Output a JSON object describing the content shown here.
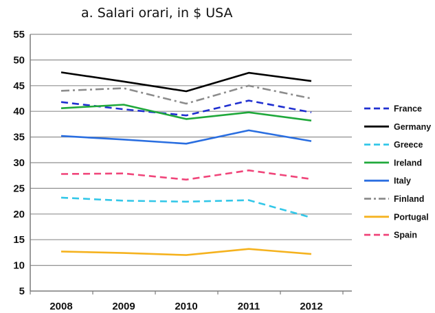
{
  "chart_data": {
    "type": "line",
    "title": "a. Salari orari, in $ USA",
    "xlabel": "",
    "ylabel": "",
    "categories": [
      "2008",
      "2009",
      "2010",
      "2011",
      "2012"
    ],
    "ylim": [
      5,
      55
    ],
    "yticks": [
      5,
      10,
      15,
      20,
      25,
      30,
      35,
      40,
      45,
      50,
      55
    ],
    "grid": "horizontal",
    "legend_position": "right",
    "series": [
      {
        "name": "France",
        "values": [
          41.8,
          40.4,
          39.2,
          42.1,
          39.8
        ],
        "color": "#1f2fd0",
        "dash": "dashed"
      },
      {
        "name": "Germany",
        "values": [
          47.6,
          45.8,
          43.9,
          47.5,
          45.9
        ],
        "color": "#000000",
        "dash": "solid"
      },
      {
        "name": "Greece",
        "values": [
          23.2,
          22.6,
          22.4,
          22.7,
          19.3
        ],
        "color": "#33c7e8",
        "dash": "dashed"
      },
      {
        "name": "Ireland",
        "values": [
          40.6,
          41.3,
          38.5,
          39.8,
          38.2
        ],
        "color": "#1fa83a",
        "dash": "solid"
      },
      {
        "name": "Italy",
        "values": [
          35.2,
          34.5,
          33.7,
          36.3,
          34.2
        ],
        "color": "#2a6ee0",
        "dash": "solid"
      },
      {
        "name": "Finland",
        "values": [
          44.0,
          44.5,
          41.5,
          45.0,
          42.5
        ],
        "color": "#8c8c8c",
        "dash": "dashdot"
      },
      {
        "name": "Portugal",
        "values": [
          12.7,
          12.4,
          12.0,
          13.2,
          12.2
        ],
        "color": "#f5b21e",
        "dash": "solid"
      },
      {
        "name": "Spain",
        "values": [
          27.8,
          27.9,
          26.7,
          28.5,
          26.8
        ],
        "color": "#f0457a",
        "dash": "dashed"
      }
    ]
  }
}
